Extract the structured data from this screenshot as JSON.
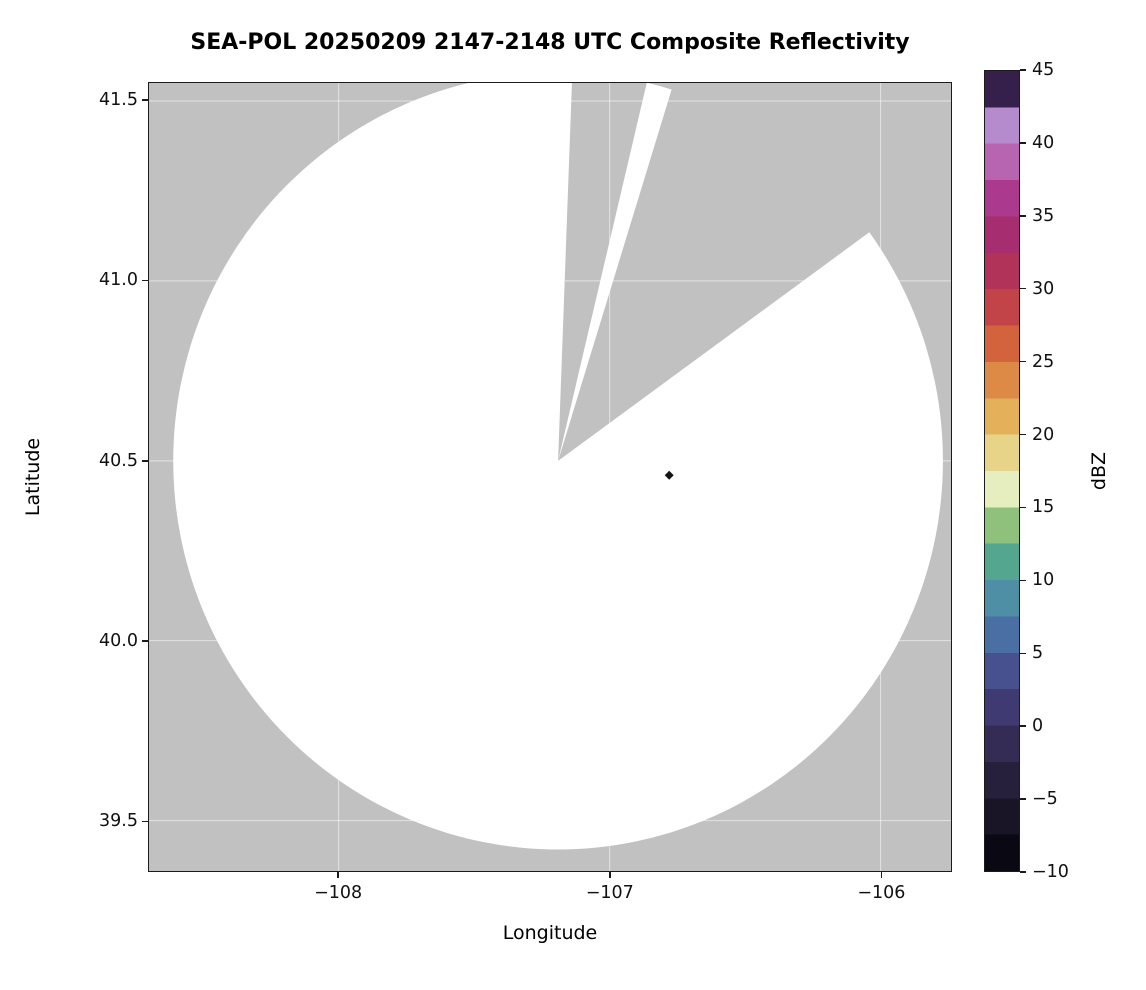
{
  "chart_data": {
    "type": "heatmap",
    "subtype": "radar-composite-reflectivity-ppi",
    "title": "SEA-POL 20250209 2147-2148 UTC Composite Reflectivity",
    "xlabel": "Longitude",
    "ylabel": "Latitude",
    "xlim": [
      -108.7,
      -105.74
    ],
    "ylim": [
      39.36,
      41.55
    ],
    "x_ticks": [
      -108,
      -107,
      -106
    ],
    "x_tick_labels": [
      "−108",
      "−107",
      "−106"
    ],
    "y_ticks": [
      41.5,
      41.0,
      40.5,
      40.0,
      39.5
    ],
    "y_tick_labels": [
      "41.5",
      "41.0",
      "40.5",
      "40.0",
      "39.5"
    ],
    "grid": true,
    "background_color": "#c1c1c1",
    "coverage": {
      "description": "White circular radar coverage area (echo-free) on gray no-data background, with two gray missing-data sectors radiating from the radar site",
      "center_lon": -107.19,
      "center_lat": 40.5,
      "radius_deg_lat": 1.08,
      "fill_color": "#ffffff",
      "missing_sectors_azimuth_deg": [
        [
          2.1,
          13.2
        ],
        [
          17.0,
          53.7
        ]
      ]
    },
    "echoes": [
      {
        "lon": -106.78,
        "lat": 40.46,
        "dbz": -10,
        "color": "#141414",
        "shape": "diamond"
      }
    ],
    "colorbar": {
      "label": "dBZ",
      "min": -10,
      "max": 45,
      "ticks": [
        45,
        40,
        35,
        30,
        25,
        20,
        15,
        10,
        5,
        0,
        -5,
        -10
      ],
      "tick_labels": [
        "45",
        "40",
        "35",
        "30",
        "25",
        "20",
        "15",
        "10",
        "5",
        "0",
        "−5",
        "−10"
      ],
      "band_width_dbz": 2.5,
      "band_colors_bottom_to_top": [
        "#0a0812",
        "#191527",
        "#27203c",
        "#342c55",
        "#3f3a72",
        "#47518f",
        "#4a6fa5",
        "#4f8fa5",
        "#55a68f",
        "#8fc07c",
        "#e6eec0",
        "#e8d488",
        "#e5b05a",
        "#dc8a46",
        "#d2633c",
        "#c24448",
        "#b1335a",
        "#a62e70",
        "#ab3a8e",
        "#b765b0",
        "#b58bcd",
        "#34204a"
      ],
      "orientation": "vertical",
      "position": "right"
    }
  }
}
